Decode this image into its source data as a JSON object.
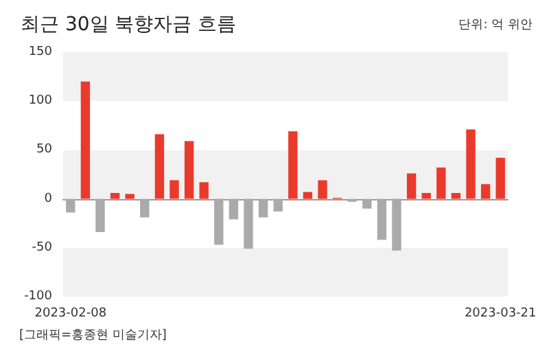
{
  "chart_data": {
    "type": "bar",
    "title": "최근 30일 북향자금 흐름",
    "annotations": [
      "단위: 억 위안",
      "[그래픽=홍종현 미술기자]"
    ],
    "categories": [
      "2023-02-08",
      null,
      null,
      null,
      null,
      null,
      null,
      null,
      null,
      null,
      null,
      null,
      null,
      null,
      null,
      null,
      null,
      null,
      null,
      null,
      null,
      null,
      null,
      null,
      null,
      null,
      null,
      null,
      null,
      "2023-03-21"
    ],
    "values": [
      -14,
      120,
      -34,
      6,
      5,
      -19,
      66,
      19,
      59,
      17,
      -47,
      -21,
      -51,
      -19,
      -13,
      69,
      7,
      19,
      1,
      -3,
      -10,
      -42,
      -53,
      26,
      6,
      32,
      6,
      71,
      15,
      42
    ],
    "colors": [
      "#aaaaaa",
      "#ea3a2c",
      "#aaaaaa",
      "#ea3a2c",
      "#ea3a2c",
      "#aaaaaa",
      "#ea3a2c",
      "#ea3a2c",
      "#ea3a2c",
      "#ea3a2c",
      "#aaaaaa",
      "#aaaaaa",
      "#aaaaaa",
      "#aaaaaa",
      "#aaaaaa",
      "#ea3a2c",
      "#ea3a2c",
      "#ea3a2c",
      "#ea3a2c",
      "#aaaaaa",
      "#aaaaaa",
      "#aaaaaa",
      "#aaaaaa",
      "#ea3a2c",
      "#ea3a2c",
      "#ea3a2c",
      "#ea3a2c",
      "#ea3a2c",
      "#ea3a2c",
      "#ea3a2c"
    ],
    "ylim": [
      -100,
      150
    ],
    "yticks": [
      -100,
      -50,
      0,
      50,
      100,
      150
    ],
    "grid": "y"
  }
}
